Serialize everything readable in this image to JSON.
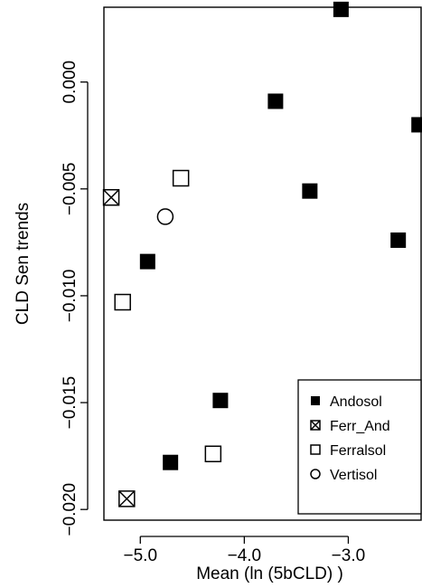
{
  "chart_data": {
    "type": "scatter",
    "xlabel": "Mean (ln (5bCLD) )",
    "ylabel": "CLD Sen trends",
    "xlim": [
      -5.35,
      -2.3
    ],
    "ylim": [
      -0.0205,
      0.0035
    ],
    "x_ticks": [
      {
        "value": -5.0,
        "label": "−5.0"
      },
      {
        "value": -4.0,
        "label": "−4.0"
      },
      {
        "value": -3.0,
        "label": "−3.0"
      }
    ],
    "y_ticks": [
      {
        "value": 0.0,
        "label": "0.000"
      },
      {
        "value": -0.005,
        "label": "−0.005"
      },
      {
        "value": -0.01,
        "label": "−0.010"
      },
      {
        "value": -0.015,
        "label": "−0.015"
      },
      {
        "value": -0.02,
        "label": "−0.020"
      }
    ],
    "legend_position": "bottom-right",
    "series": [
      {
        "name": "Andosol",
        "marker": "filled-square",
        "points": [
          {
            "x": -3.07,
            "y": 0.0034
          },
          {
            "x": -3.7,
            "y": -0.0009
          },
          {
            "x": -2.32,
            "y": -0.002
          },
          {
            "x": -3.37,
            "y": -0.0051
          },
          {
            "x": -2.52,
            "y": -0.0074
          },
          {
            "x": -4.93,
            "y": -0.0084
          },
          {
            "x": -4.23,
            "y": -0.0149
          },
          {
            "x": -4.71,
            "y": -0.0178
          }
        ]
      },
      {
        "name": "Ferr_And",
        "marker": "crossed-square",
        "points": [
          {
            "x": -5.28,
            "y": -0.0054
          },
          {
            "x": -5.13,
            "y": -0.0195
          }
        ]
      },
      {
        "name": "Ferralsol",
        "marker": "open-square",
        "points": [
          {
            "x": -4.61,
            "y": -0.0045
          },
          {
            "x": -5.17,
            "y": -0.0103
          },
          {
            "x": -4.3,
            "y": -0.0174
          }
        ]
      },
      {
        "name": "Vertisol",
        "marker": "open-circle",
        "points": [
          {
            "x": -4.76,
            "y": -0.0063
          }
        ]
      }
    ]
  }
}
